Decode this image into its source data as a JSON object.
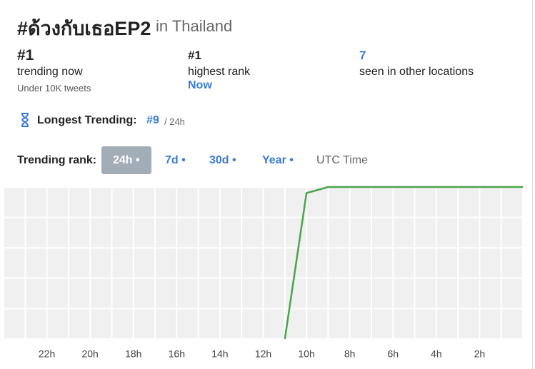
{
  "header": {
    "title": "#ด้วงกับเธอEP2",
    "location": "in Thailand"
  },
  "stats": [
    {
      "value": "#1",
      "label": "trending now",
      "note": "Under 10K tweets"
    },
    {
      "value": "#1",
      "label": "highest rank",
      "note": "Now"
    },
    {
      "value": "7",
      "label": "seen in other locations"
    }
  ],
  "longest": {
    "label": "Longest Trending:",
    "rank": "#9",
    "period": "/ 24h"
  },
  "range": {
    "label": "Trending rank:",
    "options": [
      "24h •",
      "7d •",
      "30d •",
      "Year •"
    ],
    "selected": "24h •",
    "timezone": "UTC Time"
  },
  "chart_data": {
    "type": "line",
    "categories": [
      null,
      null,
      "22h",
      null,
      "20h",
      null,
      "18h",
      null,
      "16h",
      null,
      "14h",
      null,
      "12h",
      null,
      "10h",
      null,
      "8h",
      null,
      "6h",
      null,
      "4h",
      null,
      "2h",
      null,
      null
    ],
    "series": [
      {
        "name": "rank",
        "color": "#4aa54a",
        "values": [
          null,
          null,
          null,
          null,
          null,
          null,
          null,
          null,
          null,
          null,
          null,
          null,
          null,
          51,
          3,
          1,
          1,
          1,
          1,
          1,
          1,
          1,
          1,
          1,
          1
        ]
      }
    ],
    "ylim": [
      51,
      1
    ],
    "grid": true
  }
}
